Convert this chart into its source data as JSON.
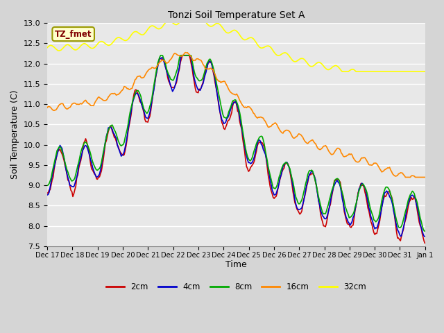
{
  "title": "Tonzi Soil Temperature Set A",
  "xlabel": "Time",
  "ylabel": "Soil Temperature (C)",
  "ylim": [
    7.5,
    13.0
  ],
  "yticks": [
    7.5,
    8.0,
    8.5,
    9.0,
    9.5,
    10.0,
    10.5,
    11.0,
    11.5,
    12.0,
    12.5,
    13.0
  ],
  "plot_bg_color": "#e8e8e8",
  "fig_bg_color": "#d5d5d5",
  "grid_color": "#ffffff",
  "legend_label": "TZ_fmet",
  "series_labels": [
    "2cm",
    "4cm",
    "8cm",
    "16cm",
    "32cm"
  ],
  "series_colors": [
    "#cc0000",
    "#0000cc",
    "#00aa00",
    "#ff8800",
    "#ffff00"
  ],
  "line_width": 1.2,
  "xtick_labels": [
    "Dec 17",
    "Dec 18",
    "Dec 19",
    "Dec 20",
    "Dec 21",
    "Dec 22",
    "Dec 23",
    "Dec 24",
    "Dec 25",
    "Dec 26",
    "Dec 27",
    "Dec 28",
    "Dec 29",
    "Dec 30",
    "Dec 31",
    "Jan 1"
  ]
}
